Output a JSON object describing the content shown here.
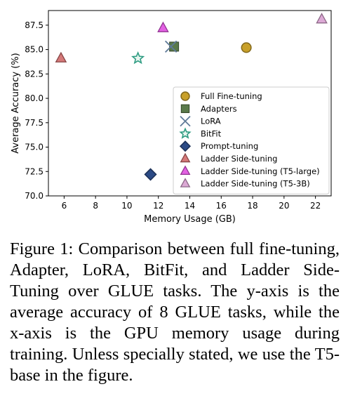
{
  "chart_data": {
    "type": "scatter",
    "xlabel": "Memory Usage (GB)",
    "ylabel": "Average Accuracy (%)",
    "xlim": [
      5,
      23
    ],
    "ylim": [
      70.0,
      89.0
    ],
    "xticks": [
      "6",
      "8",
      "10",
      "12",
      "14",
      "16",
      "18",
      "20",
      "22"
    ],
    "yticks": [
      "70.0",
      "72.5",
      "75.0",
      "77.5",
      "80.0",
      "82.5",
      "85.0",
      "87.5"
    ],
    "grid": false,
    "legend_position": "lower-right",
    "series": [
      {
        "name": "Full Fine-tuning",
        "marker": "circle",
        "color": "#c8a02a",
        "points": [
          {
            "x": 17.6,
            "y": 85.2
          }
        ]
      },
      {
        "name": "Adapters",
        "marker": "square",
        "color": "#5a7a4a",
        "points": [
          {
            "x": 13.0,
            "y": 85.3
          }
        ]
      },
      {
        "name": "LoRA",
        "marker": "x",
        "color": "#5f7a98",
        "points": [
          {
            "x": 12.8,
            "y": 85.3
          }
        ]
      },
      {
        "name": "BitFit",
        "marker": "star",
        "color": "#2e9c82",
        "points": [
          {
            "x": 10.7,
            "y": 84.1
          }
        ]
      },
      {
        "name": "Prompt-tuning",
        "marker": "diamond",
        "color": "#2b4a85",
        "points": [
          {
            "x": 11.5,
            "y": 72.2
          }
        ]
      },
      {
        "name": "Ladder Side-tuning",
        "marker": "triangle",
        "color": "#d06a6a",
        "points": [
          {
            "x": 5.8,
            "y": 84.1
          }
        ]
      },
      {
        "name": "Ladder Side-tuning (T5-large)",
        "marker": "triangle",
        "color": "#e050e0",
        "points": [
          {
            "x": 12.3,
            "y": 87.2
          }
        ]
      },
      {
        "name": "Ladder Side-tuning (T5-3B)",
        "marker": "triangle",
        "color": "#d8a0d0",
        "points": [
          {
            "x": 22.4,
            "y": 88.1
          }
        ]
      }
    ]
  },
  "caption": "Figure 1: Comparison between full fine-tuning, Adapter, LoRA, BitFit, and Ladder Side-Tuning over GLUE tasks. The y-axis is the average accuracy of 8 GLUE tasks, while the x-axis is the GPU memory usage during training.  Unless specially stated, we use the T5-base in the figure."
}
